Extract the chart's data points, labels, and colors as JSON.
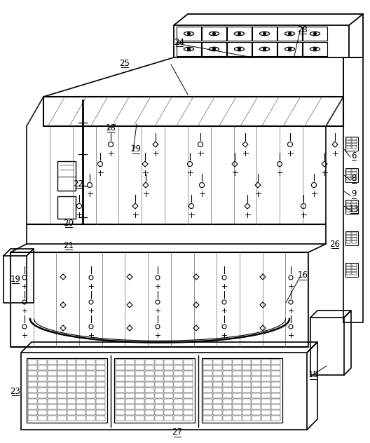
{
  "bg": "#ffffff",
  "labels": [
    [
      "6",
      505,
      222
    ],
    [
      "8",
      505,
      255
    ],
    [
      "9",
      505,
      277
    ],
    [
      "13",
      505,
      298
    ],
    [
      "15",
      447,
      535
    ],
    [
      "16",
      432,
      393
    ],
    [
      "18",
      158,
      182
    ],
    [
      "19",
      22,
      398
    ],
    [
      "20",
      98,
      318
    ],
    [
      "21",
      98,
      350
    ],
    [
      "22",
      112,
      262
    ],
    [
      "23",
      22,
      558
    ],
    [
      "24",
      256,
      60
    ],
    [
      "25",
      178,
      90
    ],
    [
      "26",
      478,
      348
    ],
    [
      "27",
      253,
      617
    ],
    [
      "28",
      432,
      42
    ],
    [
      "29",
      194,
      213
    ]
  ],
  "arrow_lines": [
    [
      500,
      224,
      491,
      213
    ],
    [
      500,
      257,
      491,
      250
    ],
    [
      500,
      279,
      491,
      273
    ],
    [
      500,
      300,
      491,
      294
    ],
    [
      443,
      537,
      466,
      522
    ],
    [
      428,
      395,
      408,
      432
    ],
    [
      154,
      184,
      165,
      177
    ],
    [
      428,
      44,
      420,
      80
    ],
    [
      252,
      62,
      360,
      82
    ],
    [
      244,
      92,
      268,
      135
    ],
    [
      190,
      215,
      195,
      177
    ]
  ]
}
